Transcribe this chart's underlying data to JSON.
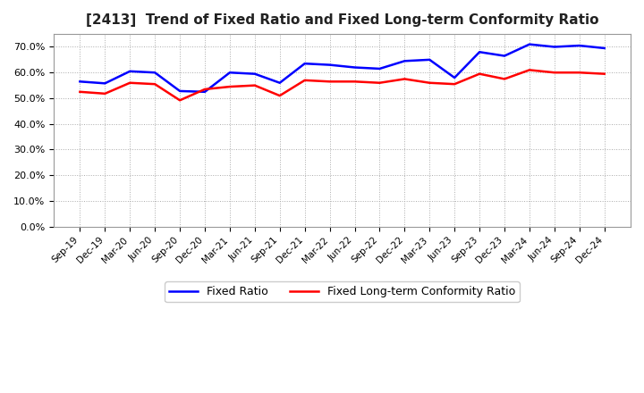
{
  "title": "[2413]  Trend of Fixed Ratio and Fixed Long-term Conformity Ratio",
  "x_labels": [
    "Sep-19",
    "Dec-19",
    "Mar-20",
    "Jun-20",
    "Sep-20",
    "Dec-20",
    "Mar-21",
    "Jun-21",
    "Sep-21",
    "Dec-21",
    "Mar-22",
    "Jun-22",
    "Sep-22",
    "Dec-22",
    "Mar-23",
    "Jun-23",
    "Sep-23",
    "Dec-23",
    "Mar-24",
    "Jun-24",
    "Sep-24",
    "Dec-24"
  ],
  "fixed_ratio": [
    56.5,
    55.8,
    60.5,
    60.0,
    52.8,
    52.5,
    60.0,
    59.5,
    56.0,
    63.5,
    63.0,
    62.0,
    61.5,
    64.5,
    65.0,
    58.0,
    68.0,
    66.5,
    71.0,
    70.0,
    70.5,
    69.5
  ],
  "fixed_lt_ratio": [
    52.5,
    51.8,
    56.0,
    55.5,
    49.2,
    53.5,
    54.5,
    55.0,
    51.0,
    57.0,
    56.5,
    56.5,
    56.0,
    57.5,
    56.0,
    55.5,
    59.5,
    57.5,
    61.0,
    60.0,
    60.0,
    59.5
  ],
  "fixed_ratio_color": "#0000ff",
  "fixed_lt_ratio_color": "#ff0000",
  "ylim": [
    0,
    75
  ],
  "yticks": [
    0,
    10,
    20,
    30,
    40,
    50,
    60,
    70
  ],
  "background_color": "#ffffff",
  "grid_color": "#aaaaaa"
}
